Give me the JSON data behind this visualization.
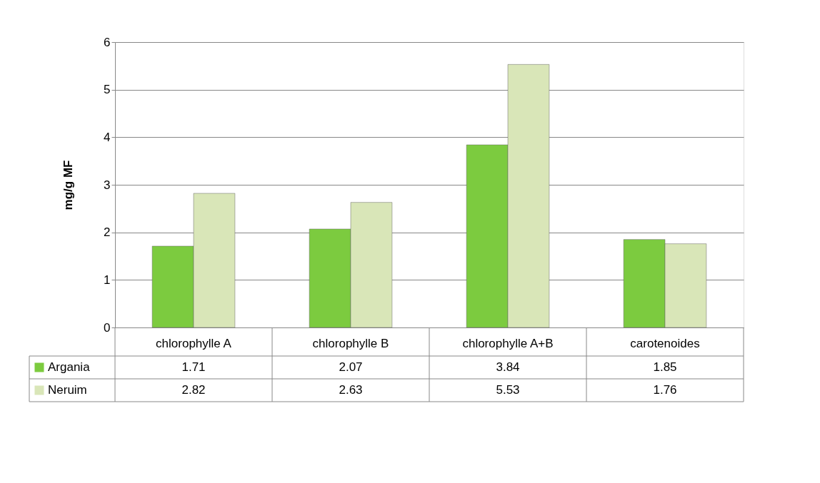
{
  "chart_data": {
    "type": "bar",
    "categories": [
      "chlorophylle A",
      "chlorophylle B",
      "chlorophylle A+B",
      "carotenoides"
    ],
    "series": [
      {
        "name": "Argania",
        "color": "#7ccb3f",
        "values": [
          1.71,
          2.07,
          3.84,
          1.85
        ]
      },
      {
        "name": "Neruim",
        "color": "#d9e6b8",
        "values": [
          2.82,
          2.63,
          5.53,
          1.76
        ]
      }
    ],
    "ylabel": "mg/g MF",
    "ylim": [
      0,
      6
    ],
    "yticks": [
      0,
      1,
      2,
      3,
      4,
      5,
      6
    ],
    "grid": "y",
    "data_labels": true,
    "legend": "bottom left"
  }
}
